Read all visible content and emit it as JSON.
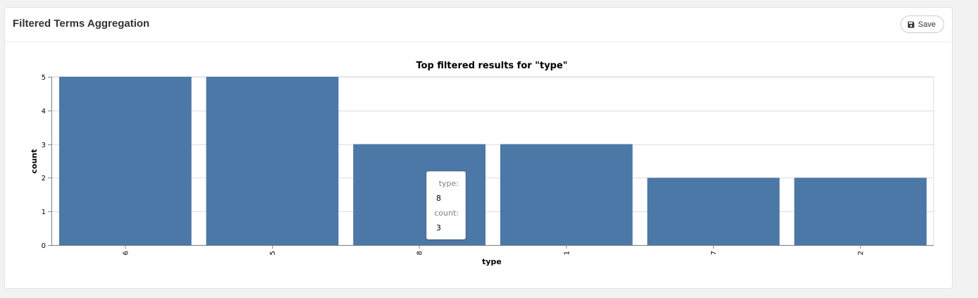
{
  "panel": {
    "title": "Filtered Terms Aggregation",
    "save_label": "Save"
  },
  "chart_data": {
    "type": "bar",
    "title": "Top filtered results for \"type\"",
    "xlabel": "type",
    "ylabel": "count",
    "categories": [
      "6",
      "5",
      "8",
      "1",
      "7",
      "2"
    ],
    "values": [
      5,
      5,
      3,
      3,
      2,
      2
    ],
    "ylim": [
      0,
      5
    ],
    "yticks": [
      0,
      1,
      2,
      3,
      4,
      5
    ],
    "grid": true,
    "bar_color": "#4c78a8"
  },
  "tooltip": {
    "key1": "type:",
    "val1": "8",
    "key2": "count:",
    "val2": "3"
  }
}
